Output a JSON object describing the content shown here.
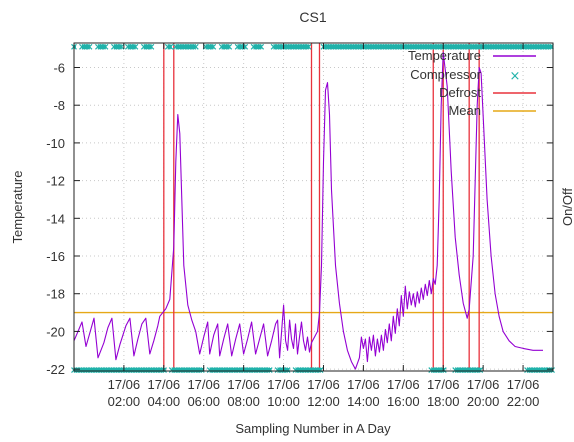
{
  "chart_data": {
    "type": "line",
    "title": "CS1",
    "xlabel": "Sampling Number in A Day",
    "ylabel": "Temperature",
    "y2label": "On/Off",
    "ylim": [
      -22.1,
      -4.7
    ],
    "xlim": [
      0.5,
      24.5
    ],
    "grid": true,
    "legend_position": "top-right",
    "yticks": [
      -22,
      -20,
      -18,
      -16,
      -14,
      -12,
      -10,
      -8,
      -6
    ],
    "xticks": [
      {
        "x": 3,
        "top": "17/06",
        "bottom": "02:00"
      },
      {
        "x": 5,
        "top": "17/06",
        "bottom": "04:00"
      },
      {
        "x": 7,
        "top": "17/06",
        "bottom": "06:00"
      },
      {
        "x": 9,
        "top": "17/06",
        "bottom": "08:00"
      },
      {
        "x": 11,
        "top": "17/06",
        "bottom": "10:00"
      },
      {
        "x": 13,
        "top": "17/06",
        "bottom": "12:00"
      },
      {
        "x": 15,
        "top": "17/06",
        "bottom": "14:00"
      },
      {
        "x": 17,
        "top": "17/06",
        "bottom": "16:00"
      },
      {
        "x": 19,
        "top": "17/06",
        "bottom": "18:00"
      },
      {
        "x": 21,
        "top": "17/06",
        "bottom": "20:00"
      },
      {
        "x": 23,
        "top": "17/06",
        "bottom": "22:00"
      }
    ],
    "series": [
      {
        "name": "Temperature",
        "color": "#9400d3",
        "points": [
          [
            0.5,
            -20.5
          ],
          [
            0.9,
            -19.5
          ],
          [
            1.1,
            -20.8
          ],
          [
            1.5,
            -19.3
          ],
          [
            1.7,
            -21.4
          ],
          [
            2.0,
            -20.6
          ],
          [
            2.2,
            -19.8
          ],
          [
            2.4,
            -19.3
          ],
          [
            2.6,
            -21.5
          ],
          [
            2.8,
            -20.7
          ],
          [
            3.1,
            -19.7
          ],
          [
            3.3,
            -19.3
          ],
          [
            3.5,
            -21.3
          ],
          [
            3.7,
            -20.4
          ],
          [
            3.9,
            -19.6
          ],
          [
            4.1,
            -19.3
          ],
          [
            4.3,
            -21.2
          ],
          [
            4.5,
            -20.5
          ],
          [
            4.7,
            -19.7
          ],
          [
            4.8,
            -19.2
          ],
          [
            5.1,
            -18.8
          ],
          [
            5.3,
            -18.3
          ],
          [
            5.5,
            -15.5
          ],
          [
            5.6,
            -11.0
          ],
          [
            5.7,
            -8.5
          ],
          [
            5.8,
            -9.5
          ],
          [
            5.9,
            -13.0
          ],
          [
            6.0,
            -16.5
          ],
          [
            6.2,
            -18.6
          ],
          [
            6.4,
            -19.4
          ],
          [
            6.6,
            -20.0
          ],
          [
            6.8,
            -21.2
          ],
          [
            7.0,
            -20.3
          ],
          [
            7.2,
            -19.5
          ],
          [
            7.3,
            -21.2
          ],
          [
            7.5,
            -20.2
          ],
          [
            7.7,
            -19.6
          ],
          [
            7.8,
            -21.3
          ],
          [
            8.0,
            -20.4
          ],
          [
            8.2,
            -19.6
          ],
          [
            8.4,
            -21.3
          ],
          [
            8.6,
            -20.4
          ],
          [
            8.8,
            -19.6
          ],
          [
            9.0,
            -21.2
          ],
          [
            9.2,
            -20.4
          ],
          [
            9.4,
            -19.5
          ],
          [
            9.6,
            -21.2
          ],
          [
            9.8,
            -20.4
          ],
          [
            10.0,
            -19.6
          ],
          [
            10.2,
            -21.3
          ],
          [
            10.4,
            -20.5
          ],
          [
            10.6,
            -19.6
          ],
          [
            10.7,
            -19.4
          ],
          [
            10.8,
            -21.4
          ],
          [
            10.9,
            -20.0
          ],
          [
            11.0,
            -18.6
          ],
          [
            11.1,
            -20.5
          ],
          [
            11.2,
            -21.0
          ],
          [
            11.3,
            -19.4
          ],
          [
            11.4,
            -20.4
          ],
          [
            11.5,
            -20.9
          ],
          [
            11.6,
            -19.6
          ],
          [
            11.7,
            -21.2
          ],
          [
            11.8,
            -20.3
          ],
          [
            11.9,
            -19.5
          ],
          [
            12.0,
            -20.5
          ],
          [
            12.1,
            -21.0
          ],
          [
            12.2,
            -20.3
          ],
          [
            12.3,
            -21.1
          ],
          [
            12.4,
            -20.6
          ],
          [
            12.7,
            -20.0
          ],
          [
            12.8,
            -19.0
          ],
          [
            12.9,
            -16.5
          ],
          [
            13.0,
            -11.0
          ],
          [
            13.1,
            -7.2
          ],
          [
            13.2,
            -6.8
          ],
          [
            13.3,
            -8.5
          ],
          [
            13.4,
            -12.5
          ],
          [
            13.6,
            -16.5
          ],
          [
            13.8,
            -18.5
          ],
          [
            14.0,
            -20.0
          ],
          [
            14.2,
            -21.0
          ],
          [
            14.4,
            -21.6
          ],
          [
            14.6,
            -22.0
          ],
          [
            14.8,
            -21.4
          ],
          [
            14.9,
            -20.3
          ],
          [
            15.0,
            -20.9
          ],
          [
            15.1,
            -20.4
          ],
          [
            15.2,
            -21.6
          ],
          [
            15.3,
            -20.3
          ],
          [
            15.4,
            -21.0
          ],
          [
            15.5,
            -20.2
          ],
          [
            15.6,
            -21.3
          ],
          [
            15.7,
            -20.4
          ],
          [
            15.8,
            -21.1
          ],
          [
            15.9,
            -20.2
          ],
          [
            16.0,
            -21.0
          ],
          [
            16.1,
            -19.9
          ],
          [
            16.2,
            -20.6
          ],
          [
            16.3,
            -19.6
          ],
          [
            16.4,
            -20.5
          ],
          [
            16.5,
            -19.2
          ],
          [
            16.6,
            -20.1
          ],
          [
            16.7,
            -18.8
          ],
          [
            16.8,
            -19.7
          ],
          [
            16.9,
            -18.1
          ],
          [
            17.0,
            -19.2
          ],
          [
            17.1,
            -17.6
          ],
          [
            17.2,
            -18.8
          ],
          [
            17.3,
            -17.9
          ],
          [
            17.4,
            -18.6
          ],
          [
            17.5,
            -18.0
          ],
          [
            17.6,
            -18.7
          ],
          [
            17.7,
            -17.9
          ],
          [
            17.8,
            -18.5
          ],
          [
            17.9,
            -17.7
          ],
          [
            18.0,
            -18.3
          ],
          [
            18.1,
            -17.5
          ],
          [
            18.2,
            -18.1
          ],
          [
            18.3,
            -17.3
          ],
          [
            18.4,
            -18.0
          ],
          [
            18.5,
            -17.2
          ],
          [
            18.6,
            -17.5
          ],
          [
            18.7,
            -16.5
          ],
          [
            18.8,
            -13.0
          ],
          [
            18.9,
            -8.0
          ],
          [
            19.0,
            -5.2
          ],
          [
            19.2,
            -7.0
          ],
          [
            19.4,
            -11.5
          ],
          [
            19.6,
            -15.0
          ],
          [
            19.8,
            -17.0
          ],
          [
            20.0,
            -18.5
          ],
          [
            20.2,
            -19.3
          ],
          [
            20.3,
            -18.8
          ],
          [
            20.5,
            -16.0
          ],
          [
            20.6,
            -12.0
          ],
          [
            20.7,
            -8.0
          ],
          [
            20.8,
            -6.0
          ],
          [
            20.9,
            -6.3
          ],
          [
            21.0,
            -8.5
          ],
          [
            21.2,
            -13.0
          ],
          [
            21.4,
            -16.0
          ],
          [
            21.6,
            -18.0
          ],
          [
            21.8,
            -19.2
          ],
          [
            22.0,
            -20.0
          ],
          [
            22.3,
            -20.5
          ],
          [
            22.6,
            -20.8
          ],
          [
            23.0,
            -20.9
          ],
          [
            23.5,
            -21.0
          ],
          [
            24.0,
            -21.0
          ]
        ]
      },
      {
        "name": "Compressor",
        "color": "#20b2aa",
        "marker": "x",
        "top_level": -4.9,
        "bottom_level": -22.05,
        "on_intervals": [
          [
            0.5,
            0.6
          ],
          [
            0.9,
            1.3
          ],
          [
            1.7,
            2.1
          ],
          [
            2.5,
            2.9
          ],
          [
            3.2,
            3.6
          ],
          [
            4.0,
            4.4
          ],
          [
            5.2,
            5.4
          ],
          [
            5.6,
            6.6
          ],
          [
            7.1,
            7.5
          ],
          [
            7.9,
            8.3
          ],
          [
            8.7,
            9.1
          ],
          [
            9.5,
            9.9
          ],
          [
            10.5,
            12.3
          ],
          [
            13.0,
            24.5
          ]
        ],
        "off_intervals": [
          [
            0.5,
            5.1
          ],
          [
            5.4,
            7.0
          ],
          [
            7.3,
            10.4
          ],
          [
            10.7,
            11.3
          ],
          [
            11.6,
            12.9
          ],
          [
            18.4,
            19.1
          ],
          [
            19.6,
            20.9
          ],
          [
            23.2,
            24.5
          ]
        ]
      },
      {
        "name": "Defrost",
        "color": "#e8323c",
        "intervals": [
          [
            5.0,
            5.5
          ],
          [
            12.4,
            12.8
          ],
          [
            18.5,
            19.0
          ],
          [
            20.3,
            20.8
          ]
        ]
      },
      {
        "name": "Mean",
        "color": "#e6a817",
        "value": -19.0
      }
    ]
  }
}
